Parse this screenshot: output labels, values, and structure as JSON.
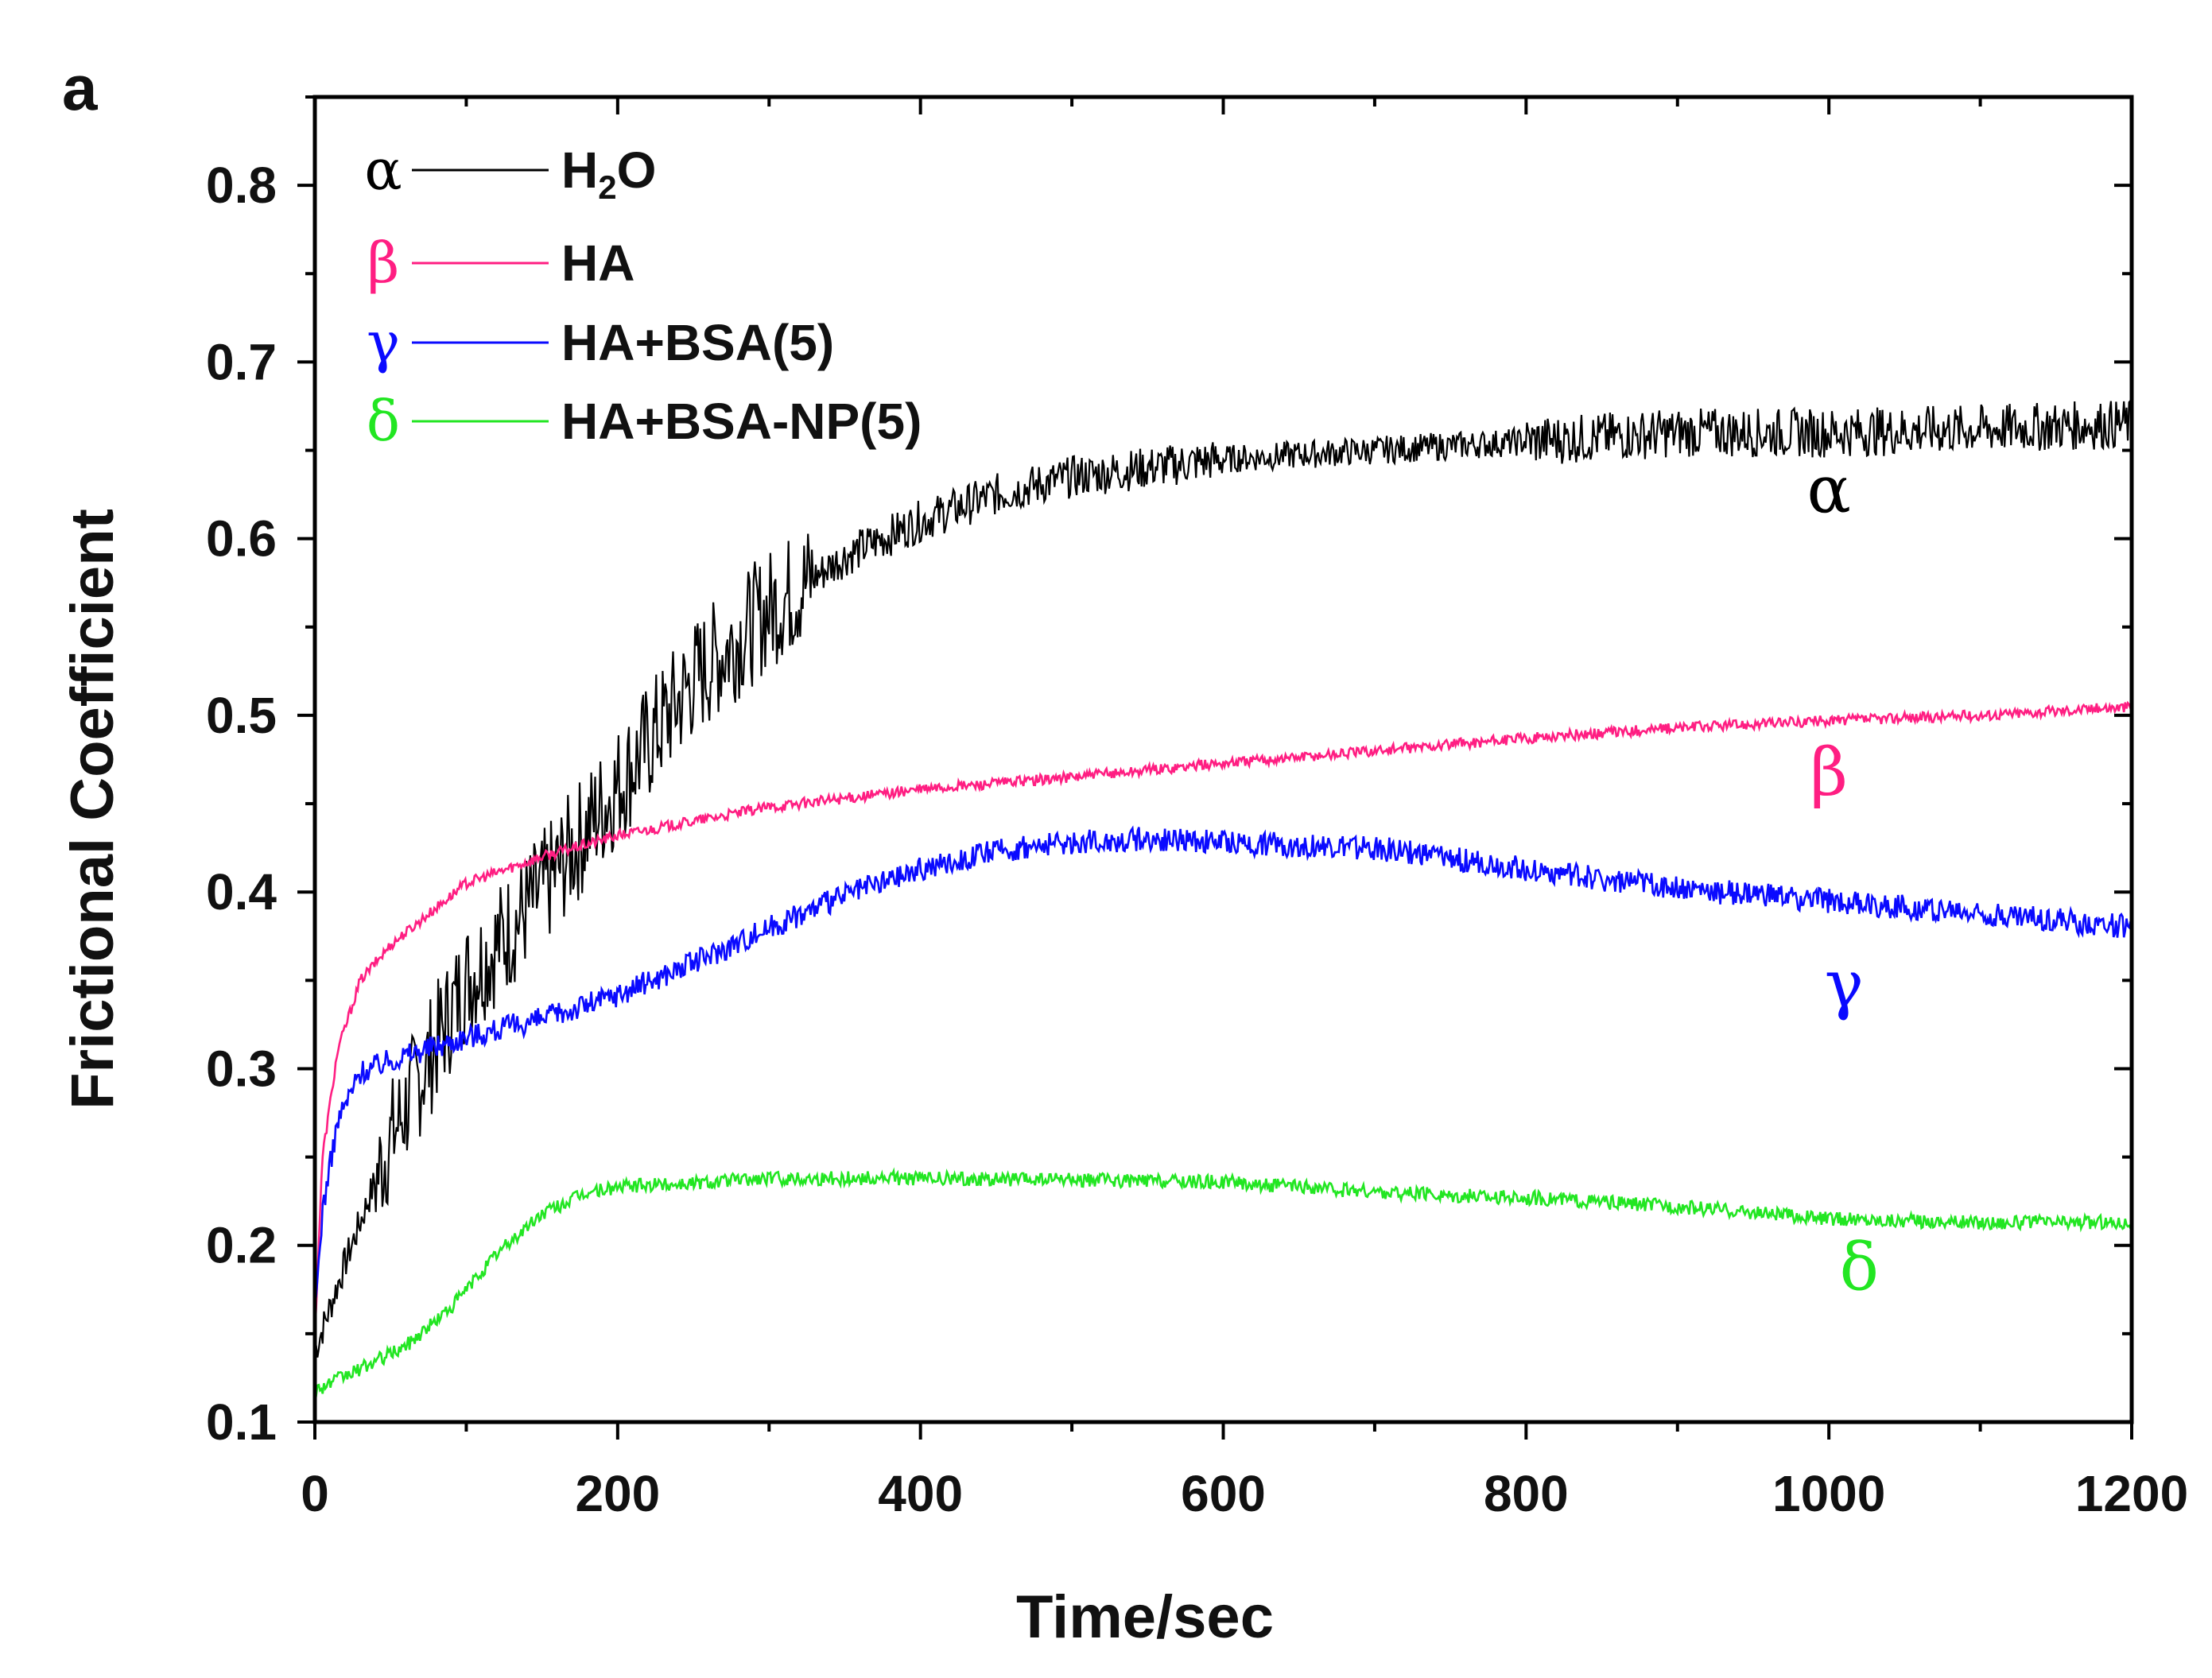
{
  "panel_label": "a",
  "chart_data": {
    "type": "line",
    "title": "",
    "xlabel": "Time/sec",
    "ylabel": "Frictional Coefficient",
    "xlim": [
      0,
      1200
    ],
    "ylim": [
      0.1,
      0.85
    ],
    "xticks": [
      0,
      200,
      400,
      600,
      800,
      1000,
      1200
    ],
    "yticks": [
      0.1,
      0.2,
      0.3,
      0.4,
      0.5,
      0.6,
      0.7,
      0.8
    ],
    "xtick_labels": [
      "0",
      "200",
      "400",
      "600",
      "800",
      "1000",
      "1200"
    ],
    "ytick_labels": [
      "0.1",
      "0.2",
      "0.3",
      "0.4",
      "0.5",
      "0.6",
      "0.7",
      "0.8"
    ],
    "legend_position": "top-left",
    "series": [
      {
        "name": "H2O",
        "legend_label": "H",
        "legend_sub": "2",
        "legend_suffix": "O",
        "symbol": "α",
        "color": "#000000",
        "noise": 0.02,
        "points": [
          [
            0,
            0.14
          ],
          [
            20,
            0.19
          ],
          [
            50,
            0.26
          ],
          [
            100,
            0.35
          ],
          [
            150,
            0.4
          ],
          [
            200,
            0.46
          ],
          [
            250,
            0.52
          ],
          [
            300,
            0.56
          ],
          [
            350,
            0.59
          ],
          [
            400,
            0.61
          ],
          [
            450,
            0.625
          ],
          [
            500,
            0.635
          ],
          [
            550,
            0.64
          ],
          [
            600,
            0.645
          ],
          [
            700,
            0.65
          ],
          [
            800,
            0.655
          ],
          [
            900,
            0.66
          ],
          [
            1000,
            0.66
          ],
          [
            1100,
            0.662
          ],
          [
            1200,
            0.665
          ]
        ]
      },
      {
        "name": "HA",
        "legend_label": "HA",
        "symbol": "β",
        "color": "#ff1e82",
        "noise": 0.003,
        "points": [
          [
            0,
            0.15
          ],
          [
            5,
            0.25
          ],
          [
            15,
            0.31
          ],
          [
            30,
            0.35
          ],
          [
            50,
            0.37
          ],
          [
            100,
            0.405
          ],
          [
            150,
            0.42
          ],
          [
            200,
            0.432
          ],
          [
            250,
            0.44
          ],
          [
            300,
            0.448
          ],
          [
            400,
            0.458
          ],
          [
            500,
            0.465
          ],
          [
            600,
            0.473
          ],
          [
            700,
            0.48
          ],
          [
            800,
            0.487
          ],
          [
            900,
            0.493
          ],
          [
            1000,
            0.497
          ],
          [
            1100,
            0.5
          ],
          [
            1200,
            0.505
          ]
        ]
      },
      {
        "name": "HA+BSA(5)",
        "legend_label": "HA+BSA(5)",
        "symbol": "γ",
        "color": "#0a0aff",
        "noise": 0.007,
        "points": [
          [
            0,
            0.16
          ],
          [
            5,
            0.22
          ],
          [
            15,
            0.27
          ],
          [
            30,
            0.298
          ],
          [
            50,
            0.305
          ],
          [
            100,
            0.318
          ],
          [
            150,
            0.328
          ],
          [
            200,
            0.342
          ],
          [
            250,
            0.36
          ],
          [
            300,
            0.38
          ],
          [
            350,
            0.398
          ],
          [
            400,
            0.413
          ],
          [
            450,
            0.423
          ],
          [
            500,
            0.428
          ],
          [
            550,
            0.43
          ],
          [
            600,
            0.428
          ],
          [
            700,
            0.425
          ],
          [
            800,
            0.413
          ],
          [
            900,
            0.402
          ],
          [
            1000,
            0.395
          ],
          [
            1100,
            0.388
          ],
          [
            1200,
            0.38
          ]
        ]
      },
      {
        "name": "HA+BSA-NP(5)",
        "legend_label": "HA+BSA-NP(5)",
        "symbol": "δ",
        "color": "#22e622",
        "noise": 0.004,
        "points": [
          [
            0,
            0.118
          ],
          [
            30,
            0.13
          ],
          [
            60,
            0.143
          ],
          [
            90,
            0.165
          ],
          [
            120,
            0.195
          ],
          [
            150,
            0.218
          ],
          [
            180,
            0.23
          ],
          [
            200,
            0.233
          ],
          [
            300,
            0.238
          ],
          [
            400,
            0.238
          ],
          [
            500,
            0.237
          ],
          [
            600,
            0.236
          ],
          [
            700,
            0.23
          ],
          [
            800,
            0.227
          ],
          [
            900,
            0.222
          ],
          [
            1000,
            0.215
          ],
          [
            1100,
            0.213
          ],
          [
            1200,
            0.213
          ]
        ]
      }
    ]
  }
}
